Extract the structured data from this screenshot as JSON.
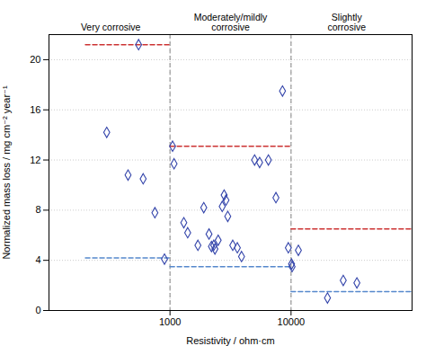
{
  "chart_data": {
    "type": "scatter",
    "xlabel": "Resistivity / ohm·cm",
    "ylabel": "Normalized mass loss / mg cm⁻² year⁻¹",
    "x": [
      300,
      450,
      550,
      600,
      750,
      900,
      1050,
      1080,
      1300,
      1400,
      1700,
      1900,
      2100,
      2200,
      2300,
      2350,
      2500,
      2700,
      2800,
      2900,
      3000,
      3300,
      3600,
      3900,
      5000,
      5500,
      6500,
      7500,
      8500,
      9500,
      10100,
      10200,
      11500,
      20000,
      27000,
      35000
    ],
    "values": [
      14.2,
      10.8,
      21.2,
      10.5,
      7.8,
      4.1,
      13.1,
      11.7,
      7.0,
      6.2,
      5.2,
      8.2,
      6.1,
      5.1,
      5.2,
      4.9,
      5.6,
      8.3,
      9.2,
      8.8,
      7.5,
      5.2,
      5.0,
      4.3,
      12.0,
      11.8,
      12.0,
      9.0,
      17.5,
      5.0,
      3.7,
      3.5,
      4.8,
      1.0,
      2.4,
      2.2
    ],
    "color": "#3344aa",
    "marker": "diamond",
    "log": "x",
    "xlim": [
      100,
      100000
    ],
    "ylim": [
      0,
      22
    ],
    "xticks": [
      1000,
      10000
    ],
    "yticks": [
      0,
      4,
      8,
      12,
      16,
      20
    ],
    "grid": true,
    "vlines": [
      {
        "x": 1000,
        "color": "#999999",
        "line_style": "dashed"
      },
      {
        "x": 10000,
        "color": "#999999",
        "line_style": "dashed"
      }
    ],
    "hlines": [
      {
        "y": 21.2,
        "x": [
          200,
          1000
        ],
        "color": "#cc3333",
        "line_style": "dashed"
      },
      {
        "y": 13.1,
        "x": [
          1000,
          10000
        ],
        "color": "#cc3333",
        "line_style": "dashed"
      },
      {
        "y": 6.5,
        "x": [
          10000,
          100000
        ],
        "color": "#cc3333",
        "line_style": "dashed"
      },
      {
        "y": 4.2,
        "x": [
          200,
          1000
        ],
        "color": "#5588cc",
        "line_style": "dashed"
      },
      {
        "y": 3.5,
        "x": [
          1000,
          10000
        ],
        "color": "#5588cc",
        "line_style": "dashed"
      },
      {
        "y": 1.5,
        "x": [
          10000,
          100000
        ],
        "color": "#5588cc",
        "line_style": "dashed"
      }
    ],
    "annotations": [
      "Very corrosive",
      "Moderately/mildly\ncorrosive",
      "Slightly\ncorrosive"
    ]
  }
}
